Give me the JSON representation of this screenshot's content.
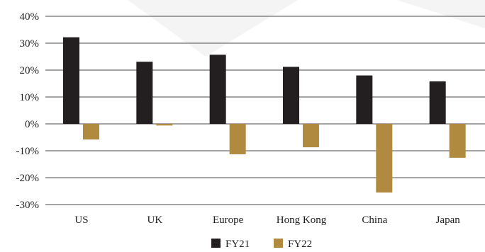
{
  "chart_data": {
    "type": "bar",
    "categories": [
      "US",
      "UK",
      "Europe",
      "Hong Kong",
      "China",
      "Japan"
    ],
    "series": [
      {
        "name": "FY21",
        "values": [
          32.2,
          23.1,
          25.7,
          21.2,
          18.0,
          15.8
        ]
      },
      {
        "name": "FY22",
        "values": [
          -5.8,
          -0.6,
          -11.3,
          -8.7,
          -25.5,
          -12.6
        ]
      }
    ],
    "yticks": [
      "40%",
      "30%",
      "20%",
      "10%",
      "0%",
      "-10%",
      "-20%",
      "-30%"
    ],
    "ylim": [
      -30,
      40
    ],
    "grid": true,
    "legend": "bottom-center",
    "colors": {
      "FY21": "#231f20",
      "FY22": "#b08a3e",
      "grid": "#4a4a4a"
    }
  }
}
